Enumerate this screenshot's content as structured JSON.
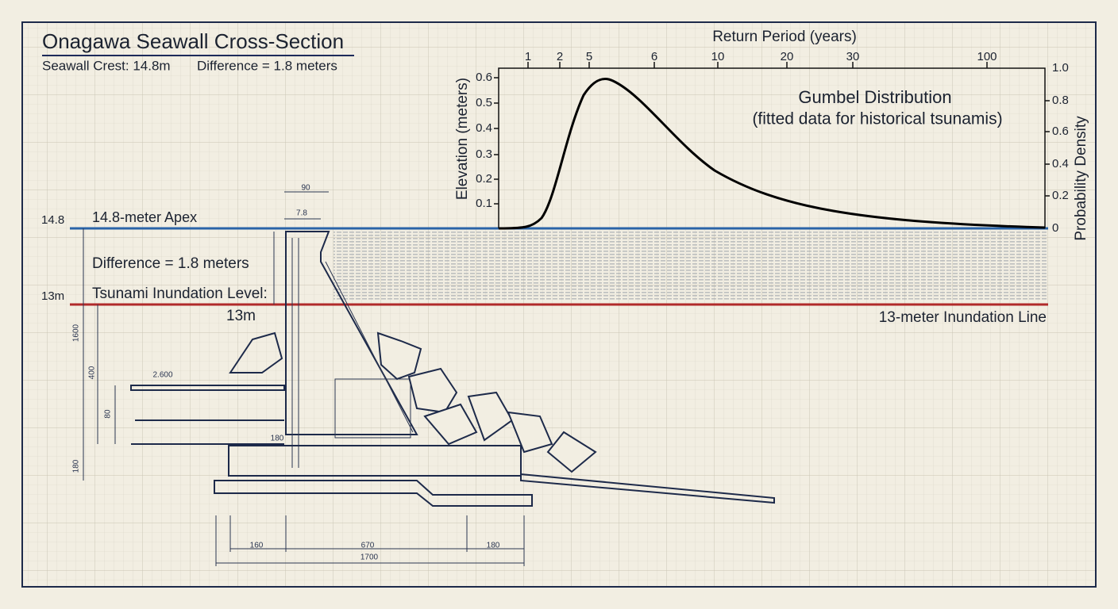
{
  "header": {
    "title": "Onagawa Seawall Cross-Section",
    "crest": "Seawall Crest: 14.8m",
    "difference": "Difference = 1.8 meters"
  },
  "levels": {
    "apex_value": "14.8",
    "apex_label": "14.8-meter Apex",
    "difference_label": "Difference = 1.8 meters",
    "inundation_value": "13m",
    "inundation_label": "Tsunami Inundation Level:",
    "inundation_label_value": "13m",
    "inundation_line": "13-meter Inundation Line"
  },
  "chart": {
    "top_axis_label": "Return Period (years)",
    "top_ticks": [
      "1",
      "2",
      "5",
      "6",
      "10",
      "20",
      "30",
      "100"
    ],
    "left_axis_label": "Elevation (meters)",
    "left_ticks": [
      "0.6",
      "0.5",
      "0.4",
      "0.3",
      "0.2",
      "0.1"
    ],
    "right_axis_label": "Probability Density",
    "right_ticks": [
      "1.0",
      "0.8",
      "0.6",
      "0.4",
      "0.2",
      "0"
    ],
    "annotation_title": "Gumbel Distribution",
    "annotation_note": "(fitted data for historical tsunamis)"
  },
  "dimensions": {
    "top_width": "90",
    "crest_width": "7.8",
    "height_total": "1600",
    "height_upper": "400",
    "height_lower": "80",
    "landing": "2.600",
    "base_depth": "180",
    "toe": "180",
    "base_left": "160",
    "base_mid": "670",
    "base_right": "180",
    "base_total": "1700"
  }
}
